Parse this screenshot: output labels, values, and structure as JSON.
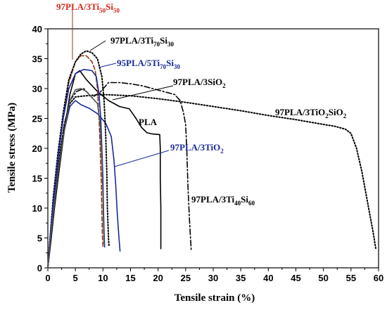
{
  "chart_data": {
    "type": "line",
    "xlabel": "Tensile strain (%)",
    "ylabel": "Tensile stress (MPa)",
    "xlim": [
      0,
      60
    ],
    "ylim": [
      0,
      40
    ],
    "xticks": [
      0,
      5,
      10,
      15,
      20,
      25,
      30,
      35,
      40,
      45,
      50,
      55,
      60
    ],
    "yticks": [
      0,
      5,
      10,
      15,
      20,
      25,
      30,
      35,
      40
    ],
    "grid": false,
    "series": [
      {
        "id": "pla",
        "color": "#000000",
        "dash": "solid",
        "points": [
          [
            0,
            0
          ],
          [
            0.5,
            4
          ],
          [
            1.2,
            10
          ],
          [
            2,
            16
          ],
          [
            3,
            23
          ],
          [
            4,
            29
          ],
          [
            5,
            32.5
          ],
          [
            5.8,
            33
          ],
          [
            7,
            31.5
          ],
          [
            9,
            29.5
          ],
          [
            11,
            28
          ],
          [
            13,
            27
          ],
          [
            14.8,
            26.6
          ],
          [
            16,
            25
          ],
          [
            17,
            23.5
          ],
          [
            18,
            22.6
          ],
          [
            19,
            22.4
          ],
          [
            20.3,
            22.3
          ],
          [
            20.4,
            20
          ],
          [
            20.4,
            15
          ],
          [
            20.5,
            10
          ],
          [
            20.5,
            3.2
          ]
        ]
      },
      {
        "id": "pla-tio2",
        "color": "#1a2a9a",
        "dash": "solid",
        "points": [
          [
            0,
            0
          ],
          [
            0.5,
            5
          ],
          [
            1.2,
            11
          ],
          [
            2,
            17
          ],
          [
            3,
            23
          ],
          [
            4,
            27
          ],
          [
            5,
            28
          ],
          [
            6,
            27.3
          ],
          [
            7.5,
            26.7
          ],
          [
            9,
            25.8
          ],
          [
            10.5,
            24.2
          ],
          [
            11.5,
            22
          ],
          [
            12,
            18
          ],
          [
            12.3,
            14
          ],
          [
            12.6,
            9
          ],
          [
            12.9,
            5
          ],
          [
            13.1,
            2.8
          ]
        ]
      },
      {
        "id": "pla-sio2",
        "color": "#000000",
        "dash": "dashdot",
        "points": [
          [
            0,
            0
          ],
          [
            0.5,
            5
          ],
          [
            1.2,
            11
          ],
          [
            2,
            17
          ],
          [
            3,
            24
          ],
          [
            4,
            28
          ],
          [
            5.2,
            29.5
          ],
          [
            6.5,
            30
          ],
          [
            8,
            28.5
          ],
          [
            9.5,
            29.4
          ],
          [
            11,
            31
          ],
          [
            13,
            31
          ],
          [
            15,
            30.8
          ],
          [
            17,
            30.5
          ],
          [
            19,
            30
          ],
          [
            21,
            29.5
          ],
          [
            23,
            29
          ],
          [
            24,
            28
          ],
          [
            24.6,
            26
          ],
          [
            25,
            24
          ],
          [
            25.2,
            20
          ],
          [
            25.4,
            14
          ],
          [
            25.7,
            8
          ],
          [
            26,
            3
          ]
        ]
      },
      {
        "id": "pla-tio2sio2",
        "color": "#000000",
        "dash": "dotted",
        "points": [
          [
            0,
            0
          ],
          [
            0.5,
            5
          ],
          [
            1.2,
            12
          ],
          [
            2,
            18
          ],
          [
            3,
            24
          ],
          [
            4,
            27.5
          ],
          [
            5,
            28.6
          ],
          [
            7,
            28.8
          ],
          [
            10,
            29
          ],
          [
            15,
            28.8
          ],
          [
            20,
            28.3
          ],
          [
            25,
            27.7
          ],
          [
            30,
            27
          ],
          [
            35,
            26.3
          ],
          [
            40,
            25.5
          ],
          [
            45,
            24.8
          ],
          [
            50,
            24
          ],
          [
            52,
            23.7
          ],
          [
            54,
            23.2
          ],
          [
            55,
            22.5
          ],
          [
            56,
            20
          ],
          [
            57,
            16
          ],
          [
            58,
            11
          ],
          [
            59,
            6
          ],
          [
            59.5,
            3.2
          ]
        ]
      },
      {
        "id": "pla-ti50si50",
        "color": "#8b3a1a",
        "dash": "dashed",
        "points": [
          [
            0,
            0
          ],
          [
            0.4,
            5
          ],
          [
            1,
            11
          ],
          [
            1.8,
            18
          ],
          [
            2.8,
            25
          ],
          [
            3.8,
            31
          ],
          [
            5,
            34.5
          ],
          [
            6,
            35.5
          ],
          [
            7,
            35.5
          ],
          [
            8,
            34.5
          ],
          [
            8.6,
            33
          ],
          [
            9,
            30
          ],
          [
            9.3,
            25
          ],
          [
            9.5,
            20
          ],
          [
            9.7,
            14
          ],
          [
            9.8,
            9
          ],
          [
            9.9,
            5
          ],
          [
            10,
            3.5
          ]
        ]
      },
      {
        "id": "pla-ti70si30",
        "color": "#000000",
        "dash": "dotted",
        "points": [
          [
            0,
            0
          ],
          [
            0.4,
            5
          ],
          [
            1,
            12
          ],
          [
            1.8,
            19
          ],
          [
            2.8,
            26
          ],
          [
            3.8,
            31.5
          ],
          [
            5,
            34.5
          ],
          [
            6,
            35.8
          ],
          [
            7,
            36.3
          ],
          [
            8,
            36
          ],
          [
            9,
            35
          ],
          [
            9.8,
            32
          ],
          [
            10.2,
            28
          ],
          [
            10.5,
            22
          ],
          [
            10.7,
            16
          ],
          [
            10.8,
            10
          ],
          [
            11,
            5
          ],
          [
            11.1,
            3.5
          ]
        ]
      },
      {
        "id": "pla-ti70si30-5",
        "color": "#1a2a9a",
        "dash": "solid",
        "points": [
          [
            0,
            0
          ],
          [
            0.4,
            5
          ],
          [
            1,
            11
          ],
          [
            1.8,
            18
          ],
          [
            2.8,
            25
          ],
          [
            3.8,
            30
          ],
          [
            5,
            32.5
          ],
          [
            6.5,
            33.2
          ],
          [
            8,
            33
          ],
          [
            8.8,
            32
          ],
          [
            9.3,
            29
          ],
          [
            9.6,
            25
          ],
          [
            9.8,
            20
          ],
          [
            10,
            15
          ],
          [
            10.1,
            10
          ],
          [
            10.2,
            6
          ],
          [
            10.3,
            3.5
          ]
        ]
      },
      {
        "id": "pla-ti40si60",
        "color": "#555555",
        "dash": "solid",
        "points": [
          [
            0,
            0
          ],
          [
            0.5,
            5
          ],
          [
            1.2,
            11
          ],
          [
            2,
            17
          ],
          [
            3,
            23
          ],
          [
            4,
            28
          ],
          [
            5,
            29.8
          ],
          [
            6,
            30
          ],
          [
            7,
            29.5
          ],
          [
            8,
            28.5
          ],
          [
            9,
            27.5
          ],
          [
            9.5,
            24
          ],
          [
            9.8,
            18
          ],
          [
            10,
            12
          ],
          [
            10.1,
            7
          ],
          [
            10.2,
            4
          ]
        ]
      }
    ],
    "annotations": [
      {
        "id": "ann-ti50si50",
        "color": "#d42a1a",
        "main": "97PLA/3Ti",
        "s1": "50",
        "m2": "Si",
        "s2": "50"
      },
      {
        "id": "ann-ti70si30",
        "color": "#000000",
        "main": "97PLA/3Ti",
        "s1": "70",
        "m2": "Si",
        "s2": "30"
      },
      {
        "id": "ann-5ti70si30",
        "color": "#1a2a9a",
        "main": "95PLA/5Ti",
        "s1": "70",
        "m2": "Si",
        "s2": "30"
      },
      {
        "id": "ann-sio2",
        "color": "#000000",
        "main": "97PLA/3SiO",
        "s1": "2",
        "m2": "",
        "s2": ""
      },
      {
        "id": "ann-tio2sio2",
        "color": "#000000",
        "main": "97PLA/3TiO",
        "s1": "2",
        "m2": "SiO",
        "s2": "2"
      },
      {
        "id": "ann-pla",
        "color": "#000000",
        "main": "PLA",
        "s1": "",
        "m2": "",
        "s2": ""
      },
      {
        "id": "ann-tio2",
        "color": "#1a2a9a",
        "main": "97PLA/3TiO",
        "s1": "2",
        "m2": "",
        "s2": ""
      },
      {
        "id": "ann-ti40si60",
        "color": "#000000",
        "main": "97PLA/3Ti",
        "s1": "40",
        "m2": "Si",
        "s2": "60"
      }
    ]
  }
}
